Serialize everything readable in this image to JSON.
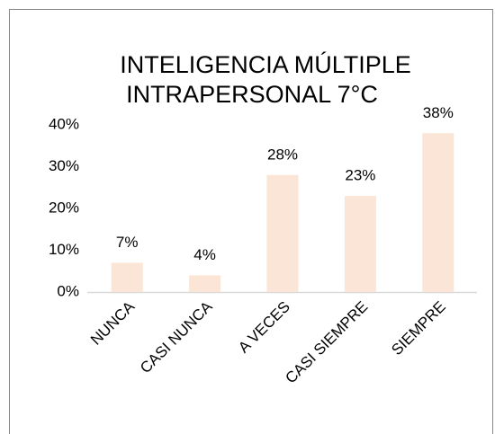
{
  "chart_data": {
    "type": "bar",
    "title": [
      "INTELIGENCIA MÚLTIPLE",
      "INTRAPERSONAL 7°C"
    ],
    "categories": [
      "NUNCA",
      "CASI NUNCA",
      "A VECES",
      "CASI SIEMPRE",
      "SIEMPRE"
    ],
    "values": [
      7,
      4,
      28,
      23,
      38
    ],
    "value_labels": [
      "7%",
      "4%",
      "28%",
      "23%",
      "38%"
    ],
    "color": "#fbe5d6",
    "ylim": [
      0,
      40
    ],
    "yticks": [
      {
        "value": 0,
        "label": "0%"
      },
      {
        "value": 10,
        "label": "10%"
      },
      {
        "value": 20,
        "label": "20%"
      },
      {
        "value": 30,
        "label": "30%"
      },
      {
        "value": 40,
        "label": "40%"
      }
    ],
    "grid": false
  }
}
